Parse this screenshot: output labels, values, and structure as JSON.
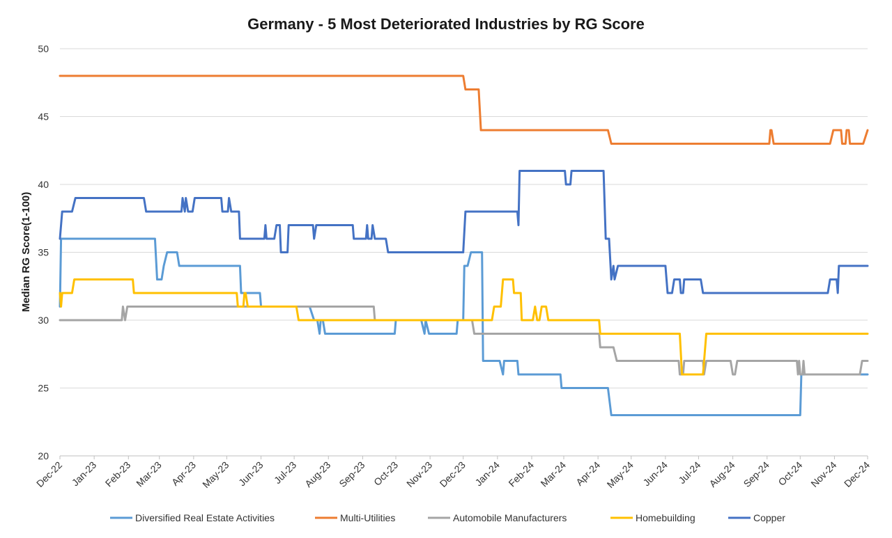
{
  "chart_data": {
    "type": "line",
    "title": "Germany - 5 Most Deteriorated Industries by RG Score",
    "ylabel": "Median RG Score(1-100)",
    "xlabel": "",
    "ylim": [
      20,
      50
    ],
    "yticks": [
      "20",
      "25",
      "30",
      "35",
      "40",
      "45",
      "50"
    ],
    "xlim": [
      "2022-12-01",
      "2024-12-01"
    ],
    "xticks": [
      {
        "date": "2022-12-01",
        "label": "Dec-22"
      },
      {
        "date": "2023-01-01",
        "label": "Jan-23"
      },
      {
        "date": "2023-02-01",
        "label": "Feb-23"
      },
      {
        "date": "2023-03-01",
        "label": "Mar-23"
      },
      {
        "date": "2023-04-01",
        "label": "Apr-23"
      },
      {
        "date": "2023-05-01",
        "label": "May-23"
      },
      {
        "date": "2023-06-01",
        "label": "Jun-23"
      },
      {
        "date": "2023-07-01",
        "label": "Jul-23"
      },
      {
        "date": "2023-08-01",
        "label": "Aug-23"
      },
      {
        "date": "2023-09-01",
        "label": "Sep-23"
      },
      {
        "date": "2023-10-01",
        "label": "Oct-23"
      },
      {
        "date": "2023-11-01",
        "label": "Nov-23"
      },
      {
        "date": "2023-12-01",
        "label": "Dec-23"
      },
      {
        "date": "2024-01-01",
        "label": "Jan-24"
      },
      {
        "date": "2024-02-01",
        "label": "Feb-24"
      },
      {
        "date": "2024-03-01",
        "label": "Mar-24"
      },
      {
        "date": "2024-04-01",
        "label": "Apr-24"
      },
      {
        "date": "2024-05-01",
        "label": "May-24"
      },
      {
        "date": "2024-06-01",
        "label": "Jun-24"
      },
      {
        "date": "2024-07-01",
        "label": "Jul-24"
      },
      {
        "date": "2024-08-01",
        "label": "Aug-24"
      },
      {
        "date": "2024-09-01",
        "label": "Sep-24"
      },
      {
        "date": "2024-10-01",
        "label": "Oct-24"
      },
      {
        "date": "2024-11-01",
        "label": "Nov-24"
      },
      {
        "date": "2024-12-01",
        "label": "Dec-24"
      }
    ],
    "grid": "horizontal",
    "legend_position": "bottom",
    "series": [
      {
        "name": "Diversified Real Estate Activities",
        "color": "#5b9bd5",
        "points": [
          [
            "2022-12-01",
            31
          ],
          [
            "2022-12-02",
            36
          ],
          [
            "2023-02-25",
            36
          ],
          [
            "2023-02-27",
            33
          ],
          [
            "2023-03-03",
            33
          ],
          [
            "2023-03-05",
            34
          ],
          [
            "2023-03-08",
            35
          ],
          [
            "2023-03-17",
            35
          ],
          [
            "2023-03-19",
            34
          ],
          [
            "2023-05-13",
            34
          ],
          [
            "2023-05-14",
            32
          ],
          [
            "2023-05-31",
            32
          ],
          [
            "2023-06-01",
            31
          ],
          [
            "2023-07-15",
            31
          ],
          [
            "2023-07-19",
            30
          ],
          [
            "2023-07-22",
            30
          ],
          [
            "2023-07-24",
            29
          ],
          [
            "2023-07-25",
            30
          ],
          [
            "2023-07-27",
            30
          ],
          [
            "2023-07-29",
            29
          ],
          [
            "2023-09-30",
            29
          ],
          [
            "2023-10-01",
            30
          ],
          [
            "2023-10-24",
            30
          ],
          [
            "2023-10-27",
            29
          ],
          [
            "2023-10-28",
            30
          ],
          [
            "2023-10-31",
            29
          ],
          [
            "2023-11-25",
            29
          ],
          [
            "2023-11-26",
            30
          ],
          [
            "2023-12-01",
            30
          ],
          [
            "2023-12-02",
            34
          ],
          [
            "2023-12-05",
            34
          ],
          [
            "2023-12-08",
            35
          ],
          [
            "2023-12-18",
            35
          ],
          [
            "2023-12-19",
            27
          ],
          [
            "2024-01-03",
            27
          ],
          [
            "2024-01-06",
            26
          ],
          [
            "2024-01-07",
            27
          ],
          [
            "2024-01-19",
            27
          ],
          [
            "2024-01-20",
            26
          ],
          [
            "2024-02-27",
            26
          ],
          [
            "2024-02-28",
            25
          ],
          [
            "2024-04-10",
            25
          ],
          [
            "2024-04-13",
            23
          ],
          [
            "2024-10-01",
            23
          ],
          [
            "2024-10-02",
            26
          ],
          [
            "2024-12-01",
            26
          ]
        ]
      },
      {
        "name": "Multi-Utilities",
        "color": "#ed7d31",
        "points": [
          [
            "2022-12-01",
            48
          ],
          [
            "2023-12-01",
            48
          ],
          [
            "2023-12-03",
            47
          ],
          [
            "2023-12-15",
            47
          ],
          [
            "2023-12-17",
            44
          ],
          [
            "2024-04-10",
            44
          ],
          [
            "2024-04-13",
            43
          ],
          [
            "2024-09-03",
            43
          ],
          [
            "2024-09-04",
            44
          ],
          [
            "2024-09-05",
            44
          ],
          [
            "2024-09-07",
            43
          ],
          [
            "2024-10-28",
            43
          ],
          [
            "2024-10-31",
            44
          ],
          [
            "2024-11-07",
            44
          ],
          [
            "2024-11-08",
            43
          ],
          [
            "2024-11-11",
            43
          ],
          [
            "2024-11-12",
            44
          ],
          [
            "2024-11-14",
            44
          ],
          [
            "2024-11-15",
            43
          ],
          [
            "2024-11-27",
            43
          ],
          [
            "2024-12-01",
            44
          ]
        ]
      },
      {
        "name": "Automobile Manufacturers",
        "color": "#a5a5a5",
        "points": [
          [
            "2022-12-01",
            30
          ],
          [
            "2023-01-26",
            30
          ],
          [
            "2023-01-27",
            31
          ],
          [
            "2023-01-29",
            30
          ],
          [
            "2023-01-31",
            31
          ],
          [
            "2023-09-11",
            31
          ],
          [
            "2023-09-12",
            30
          ],
          [
            "2023-12-09",
            30
          ],
          [
            "2023-12-11",
            29
          ],
          [
            "2024-04-02",
            29
          ],
          [
            "2024-04-03",
            28
          ],
          [
            "2024-04-15",
            28
          ],
          [
            "2024-04-18",
            27
          ],
          [
            "2024-06-13",
            27
          ],
          [
            "2024-06-14",
            26
          ],
          [
            "2024-06-17",
            26
          ],
          [
            "2024-06-18",
            27
          ],
          [
            "2024-06-27",
            27
          ],
          [
            "2024-07-05",
            27
          ],
          [
            "2024-07-06",
            26
          ],
          [
            "2024-07-08",
            27
          ],
          [
            "2024-07-30",
            27
          ],
          [
            "2024-08-01",
            26
          ],
          [
            "2024-08-03",
            26
          ],
          [
            "2024-08-05",
            27
          ],
          [
            "2024-09-28",
            27
          ],
          [
            "2024-09-29",
            26
          ],
          [
            "2024-09-30",
            27
          ],
          [
            "2024-10-01",
            26
          ],
          [
            "2024-10-03",
            26
          ],
          [
            "2024-10-04",
            27
          ],
          [
            "2024-10-05",
            26
          ],
          [
            "2024-11-24",
            26
          ],
          [
            "2024-11-26",
            27
          ],
          [
            "2024-12-01",
            27
          ]
        ]
      },
      {
        "name": "Homebuilding",
        "color": "#ffc000",
        "points": [
          [
            "2022-12-01",
            32
          ],
          [
            "2022-12-02",
            31
          ],
          [
            "2022-12-03",
            32
          ],
          [
            "2022-12-12",
            32
          ],
          [
            "2022-12-14",
            33
          ],
          [
            "2023-02-05",
            33
          ],
          [
            "2023-02-06",
            32
          ],
          [
            "2023-05-10",
            32
          ],
          [
            "2023-05-11",
            31
          ],
          [
            "2023-05-16",
            31
          ],
          [
            "2023-05-17",
            32
          ],
          [
            "2023-05-18",
            32
          ],
          [
            "2023-05-20",
            31
          ],
          [
            "2023-07-03",
            31
          ],
          [
            "2023-07-05",
            30
          ],
          [
            "2023-12-27",
            30
          ],
          [
            "2023-12-29",
            31
          ],
          [
            "2024-01-04",
            31
          ],
          [
            "2024-01-06",
            33
          ],
          [
            "2024-01-15",
            33
          ],
          [
            "2024-01-16",
            32
          ],
          [
            "2024-01-22",
            32
          ],
          [
            "2024-01-23",
            30
          ],
          [
            "2024-02-02",
            30
          ],
          [
            "2024-02-04",
            31
          ],
          [
            "2024-02-06",
            30
          ],
          [
            "2024-02-08",
            30
          ],
          [
            "2024-02-10",
            31
          ],
          [
            "2024-02-14",
            31
          ],
          [
            "2024-02-16",
            30
          ],
          [
            "2024-04-02",
            30
          ],
          [
            "2024-04-03",
            29
          ],
          [
            "2024-06-14",
            29
          ],
          [
            "2024-06-16",
            26
          ],
          [
            "2024-07-05",
            26
          ],
          [
            "2024-07-08",
            29
          ],
          [
            "2024-12-01",
            29
          ]
        ]
      },
      {
        "name": "Copper",
        "color": "#4472c4",
        "points": [
          [
            "2022-12-01",
            36
          ],
          [
            "2022-12-03",
            38
          ],
          [
            "2022-12-12",
            38
          ],
          [
            "2022-12-15",
            39
          ],
          [
            "2023-02-15",
            39
          ],
          [
            "2023-02-17",
            38
          ],
          [
            "2023-03-21",
            38
          ],
          [
            "2023-03-22",
            39
          ],
          [
            "2023-03-24",
            38
          ],
          [
            "2023-03-25",
            39
          ],
          [
            "2023-03-27",
            38
          ],
          [
            "2023-03-31",
            38
          ],
          [
            "2023-04-02",
            39
          ],
          [
            "2023-04-26",
            39
          ],
          [
            "2023-04-27",
            38
          ],
          [
            "2023-05-02",
            38
          ],
          [
            "2023-05-03",
            39
          ],
          [
            "2023-05-05",
            38
          ],
          [
            "2023-05-12",
            38
          ],
          [
            "2023-05-13",
            36
          ],
          [
            "2023-06-04",
            36
          ],
          [
            "2023-06-05",
            37
          ],
          [
            "2023-06-06",
            36
          ],
          [
            "2023-06-13",
            36
          ],
          [
            "2023-06-15",
            37
          ],
          [
            "2023-06-18",
            37
          ],
          [
            "2023-06-19",
            35
          ],
          [
            "2023-06-25",
            35
          ],
          [
            "2023-06-26",
            37
          ],
          [
            "2023-07-18",
            37
          ],
          [
            "2023-07-19",
            36
          ],
          [
            "2023-07-21",
            37
          ],
          [
            "2023-08-23",
            37
          ],
          [
            "2023-08-24",
            36
          ],
          [
            "2023-09-04",
            36
          ],
          [
            "2023-09-05",
            37
          ],
          [
            "2023-09-06",
            36
          ],
          [
            "2023-09-09",
            36
          ],
          [
            "2023-09-10",
            37
          ],
          [
            "2023-09-12",
            36
          ],
          [
            "2023-09-22",
            36
          ],
          [
            "2023-09-24",
            35
          ],
          [
            "2023-12-01",
            35
          ],
          [
            "2023-12-03",
            38
          ],
          [
            "2024-01-19",
            38
          ],
          [
            "2024-01-20",
            37
          ],
          [
            "2024-01-21",
            41
          ],
          [
            "2024-03-02",
            41
          ],
          [
            "2024-03-03",
            40
          ],
          [
            "2024-03-07",
            40
          ],
          [
            "2024-03-08",
            41
          ],
          [
            "2024-04-06",
            41
          ],
          [
            "2024-04-08",
            36
          ],
          [
            "2024-04-11",
            36
          ],
          [
            "2024-04-13",
            33
          ],
          [
            "2024-04-15",
            34
          ],
          [
            "2024-04-16",
            33
          ],
          [
            "2024-04-19",
            34
          ],
          [
            "2024-06-01",
            34
          ],
          [
            "2024-06-03",
            32
          ],
          [
            "2024-06-07",
            32
          ],
          [
            "2024-06-09",
            33
          ],
          [
            "2024-06-14",
            33
          ],
          [
            "2024-06-15",
            32
          ],
          [
            "2024-06-17",
            32
          ],
          [
            "2024-06-18",
            33
          ],
          [
            "2024-07-03",
            33
          ],
          [
            "2024-07-05",
            32
          ],
          [
            "2024-10-26",
            32
          ],
          [
            "2024-10-28",
            33
          ],
          [
            "2024-11-03",
            33
          ],
          [
            "2024-11-04",
            32
          ],
          [
            "2024-11-05",
            34
          ],
          [
            "2024-12-01",
            34
          ]
        ]
      }
    ]
  }
}
